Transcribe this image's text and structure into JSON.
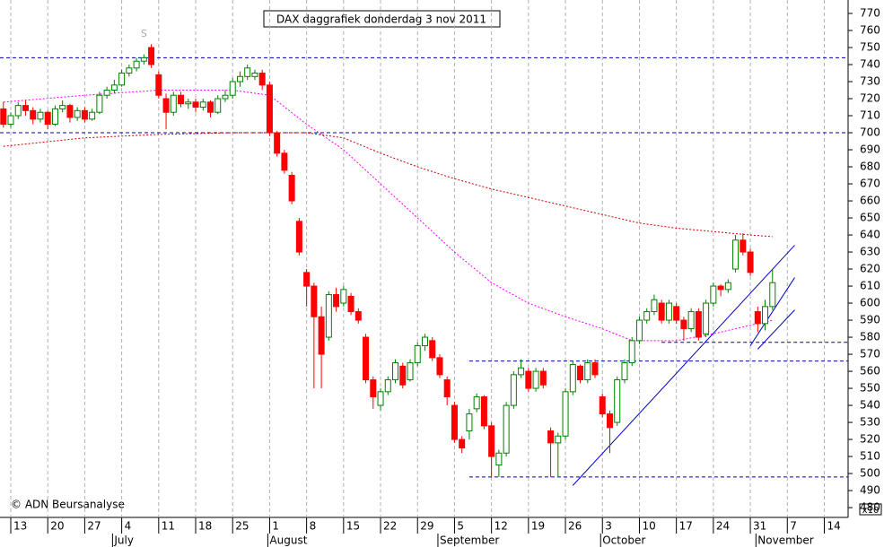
{
  "chart_data": {
    "type": "candlestick",
    "title": "DAX daggrafiek donderdag 3 nov 2011",
    "annotation": "S",
    "annotation_at": [
      18,
      758
    ],
    "copyright": "© ADN Beursanalyse",
    "scale_note": "x10",
    "xlim": [
      -1.456,
      113.22
    ],
    "ylim": [
      475.3,
      777.9
    ],
    "yticks": [
      480,
      490,
      500,
      510,
      520,
      530,
      540,
      550,
      560,
      570,
      580,
      590,
      600,
      610,
      620,
      630,
      640,
      650,
      660,
      670,
      680,
      690,
      700,
      710,
      720,
      730,
      740,
      750,
      760,
      770
    ],
    "xticks": [
      {
        "value": 0,
        "label": "13"
      },
      {
        "value": 5,
        "label": "20"
      },
      {
        "value": 10,
        "label": "27"
      },
      {
        "value": 15,
        "label": "4"
      },
      {
        "value": 20,
        "label": "11"
      },
      {
        "value": 25,
        "label": "18"
      },
      {
        "value": 30,
        "label": "25"
      },
      {
        "value": 35,
        "label": "1"
      },
      {
        "value": 40,
        "label": "8"
      },
      {
        "value": 45,
        "label": "15"
      },
      {
        "value": 50,
        "label": "22"
      },
      {
        "value": 55,
        "label": "29"
      },
      {
        "value": 60,
        "label": "5"
      },
      {
        "value": 65,
        "label": "12"
      },
      {
        "value": 70,
        "label": "19"
      },
      {
        "value": 75,
        "label": "26"
      },
      {
        "value": 80,
        "label": "3"
      },
      {
        "value": 85,
        "label": "10"
      },
      {
        "value": 90,
        "label": "17"
      },
      {
        "value": 95,
        "label": "24"
      },
      {
        "value": 100,
        "label": "31"
      },
      {
        "value": 105,
        "label": "7"
      },
      {
        "value": 110,
        "label": "14"
      }
    ],
    "months": [
      {
        "value": 14,
        "label": "July"
      },
      {
        "value": 35,
        "label": "August"
      },
      {
        "value": 58,
        "label": "September"
      },
      {
        "value": 80,
        "label": "October"
      },
      {
        "value": 101,
        "label": "November"
      }
    ],
    "grid": "x",
    "up_color": "#008000",
    "down_color": "#ff0000",
    "x": [
      -1,
      0,
      1,
      2,
      3,
      4,
      5,
      6,
      7,
      8,
      9,
      10,
      11,
      12,
      13,
      14,
      15,
      16,
      17,
      18,
      19,
      20,
      21,
      22,
      23,
      24,
      25,
      26,
      27,
      28,
      29,
      30,
      31,
      32,
      33,
      34,
      35,
      36,
      37,
      38,
      39,
      40,
      41,
      42,
      43,
      44,
      45,
      46,
      47,
      48,
      49,
      50,
      51,
      52,
      53,
      54,
      55,
      56,
      57,
      58,
      59,
      60,
      61,
      62,
      63,
      64,
      65,
      66,
      67,
      68,
      69,
      70,
      71,
      72,
      73,
      74,
      75,
      76,
      77,
      78,
      79,
      80,
      81,
      82,
      83,
      84,
      85,
      86,
      87,
      88,
      89,
      90,
      91,
      92,
      93,
      94,
      95,
      96,
      97,
      98,
      99,
      100,
      101,
      102,
      103
    ],
    "candles": [
      [
        714,
        718,
        703,
        705
      ],
      [
        705,
        712,
        703,
        710
      ],
      [
        710,
        718,
        708,
        716
      ],
      [
        716,
        719,
        710,
        713
      ],
      [
        713,
        715,
        705,
        708
      ],
      [
        708,
        714,
        706,
        712
      ],
      [
        712,
        713,
        702,
        705
      ],
      [
        705,
        716,
        704,
        714
      ],
      [
        714,
        719,
        712,
        716
      ],
      [
        716,
        717,
        706,
        709
      ],
      [
        709,
        715,
        707,
        713
      ],
      [
        713,
        715,
        706,
        708
      ],
      [
        708,
        714,
        707,
        712
      ],
      [
        712,
        724,
        711,
        722
      ],
      [
        722,
        727,
        720,
        725
      ],
      [
        725,
        731,
        723,
        728
      ],
      [
        728,
        737,
        727,
        735
      ],
      [
        735,
        740,
        733,
        738
      ],
      [
        738,
        744,
        736,
        742
      ],
      [
        742,
        746,
        740,
        744
      ],
      [
        750,
        752,
        738,
        740
      ],
      [
        734,
        736,
        720,
        722
      ],
      [
        720,
        723,
        702,
        712
      ],
      [
        712,
        724,
        710,
        722
      ],
      [
        722,
        724,
        715,
        717
      ],
      [
        717,
        720,
        714,
        718
      ],
      [
        718,
        720,
        712,
        715
      ],
      [
        715,
        720,
        713,
        718
      ],
      [
        718,
        719,
        709,
        712
      ],
      [
        712,
        722,
        711,
        720
      ],
      [
        720,
        725,
        718,
        722
      ],
      [
        722,
        732,
        720,
        730
      ],
      [
        730,
        736,
        727,
        733
      ],
      [
        733,
        740,
        731,
        738
      ],
      [
        733,
        737,
        731,
        735
      ],
      [
        735,
        737,
        725,
        728
      ],
      [
        728,
        730,
        698,
        700
      ],
      [
        700,
        701,
        686,
        688
      ],
      [
        688,
        690,
        676,
        678
      ],
      [
        675,
        677,
        658,
        660
      ],
      [
        648,
        650,
        628,
        630
      ],
      [
        618,
        620,
        598,
        610
      ],
      [
        610,
        612,
        550,
        592
      ],
      [
        592,
        598,
        550,
        570
      ],
      [
        580,
        607,
        578,
        605
      ],
      [
        605,
        609,
        595,
        598
      ],
      [
        600,
        610,
        598,
        608
      ],
      [
        604,
        606,
        593,
        595
      ],
      [
        595,
        597,
        588,
        590
      ],
      [
        580,
        582,
        553,
        555
      ],
      [
        555,
        557,
        538,
        545
      ],
      [
        540,
        550,
        537,
        548
      ],
      [
        548,
        557,
        546,
        555
      ],
      [
        555,
        567,
        553,
        565
      ],
      [
        563,
        565,
        550,
        552
      ],
      [
        555,
        567,
        554,
        565
      ],
      [
        565,
        577,
        563,
        575
      ],
      [
        575,
        582,
        572,
        580
      ],
      [
        578,
        580,
        566,
        568
      ],
      [
        568,
        570,
        556,
        558
      ],
      [
        555,
        557,
        540,
        545
      ],
      [
        540,
        542,
        518,
        520
      ],
      [
        520,
        522,
        512,
        515
      ],
      [
        525,
        538,
        520,
        535
      ],
      [
        538,
        547,
        536,
        545
      ],
      [
        545,
        546,
        526,
        528
      ],
      [
        528,
        530,
        498,
        510
      ],
      [
        505,
        514,
        498,
        512
      ],
      [
        512,
        542,
        510,
        540
      ],
      [
        540,
        560,
        538,
        558
      ],
      [
        558,
        567,
        556,
        562
      ],
      [
        560,
        562,
        548,
        550
      ],
      [
        550,
        562,
        548,
        560
      ],
      [
        560,
        562,
        550,
        552
      ],
      [
        525,
        527,
        498,
        518
      ],
      [
        518,
        524,
        498,
        522
      ],
      [
        522,
        550,
        520,
        548
      ],
      [
        548,
        566,
        546,
        564
      ],
      [
        563,
        564,
        553,
        555
      ],
      [
        555,
        567,
        553,
        565
      ],
      [
        565,
        567,
        556,
        558
      ],
      [
        545,
        547,
        533,
        535
      ],
      [
        535,
        537,
        512,
        527
      ],
      [
        530,
        557,
        528,
        555
      ],
      [
        555,
        567,
        553,
        565
      ],
      [
        565,
        580,
        563,
        578
      ],
      [
        578,
        592,
        576,
        590
      ],
      [
        590,
        597,
        588,
        595
      ],
      [
        595,
        605,
        593,
        602
      ],
      [
        600,
        602,
        588,
        590
      ],
      [
        590,
        602,
        588,
        600
      ],
      [
        598,
        600,
        588,
        590
      ],
      [
        590,
        592,
        578,
        585
      ],
      [
        585,
        597,
        583,
        595
      ],
      [
        595,
        597,
        578,
        580
      ],
      [
        582,
        602,
        580,
        600
      ],
      [
        600,
        612,
        598,
        610
      ],
      [
        610,
        611,
        604,
        608
      ],
      [
        608,
        614,
        606,
        612
      ],
      [
        620,
        640,
        618,
        637
      ],
      [
        637,
        641,
        628,
        630
      ],
      [
        630,
        632,
        616,
        618
      ],
      [
        595,
        598,
        583,
        588
      ],
      [
        588,
        602,
        584,
        598
      ],
      [
        598,
        620,
        596,
        612
      ]
    ],
    "overlays": [
      {
        "color": "#ff00ff",
        "x": [
          -1,
          10,
          20,
          30,
          35,
          40,
          45,
          50,
          55,
          60,
          65,
          70,
          75,
          80,
          84,
          90,
          95,
          100,
          103
        ],
        "values": [
          718,
          722,
          725,
          725,
          722,
          705,
          690,
          670,
          650,
          630,
          612,
          600,
          592,
          585,
          578,
          578,
          582,
          587,
          590
        ]
      },
      {
        "color": "#cc0000",
        "x": [
          -1,
          10,
          20,
          30,
          40,
          45,
          50,
          55,
          60,
          65,
          70,
          75,
          80,
          85,
          90,
          95,
          100,
          103
        ],
        "values": [
          692,
          697,
          699,
          700,
          700,
          697,
          688,
          680,
          673,
          667,
          662,
          657,
          652,
          647,
          644,
          642,
          640,
          639
        ]
      }
    ],
    "hlines": [
      {
        "x": [
          -1.456,
          113.22
        ],
        "values": [
          744,
          744
        ]
      },
      {
        "x": [
          -1.456,
          113.22
        ],
        "values": [
          700,
          700
        ]
      },
      {
        "x": [
          88,
          113.22
        ],
        "values": [
          577,
          577
        ]
      },
      {
        "x": [
          62,
          113.22
        ],
        "values": [
          566,
          566
        ]
      },
      {
        "x": [
          62,
          113.22
        ],
        "values": [
          498,
          498
        ]
      }
    ],
    "trendlines": [
      {
        "x": [
          76,
          106
        ],
        "values": [
          493,
          634
        ]
      },
      {
        "x": [
          100,
          106
        ],
        "values": [
          575,
          615
        ]
      },
      {
        "x": [
          101,
          106
        ],
        "values": [
          573,
          596
        ]
      }
    ]
  }
}
